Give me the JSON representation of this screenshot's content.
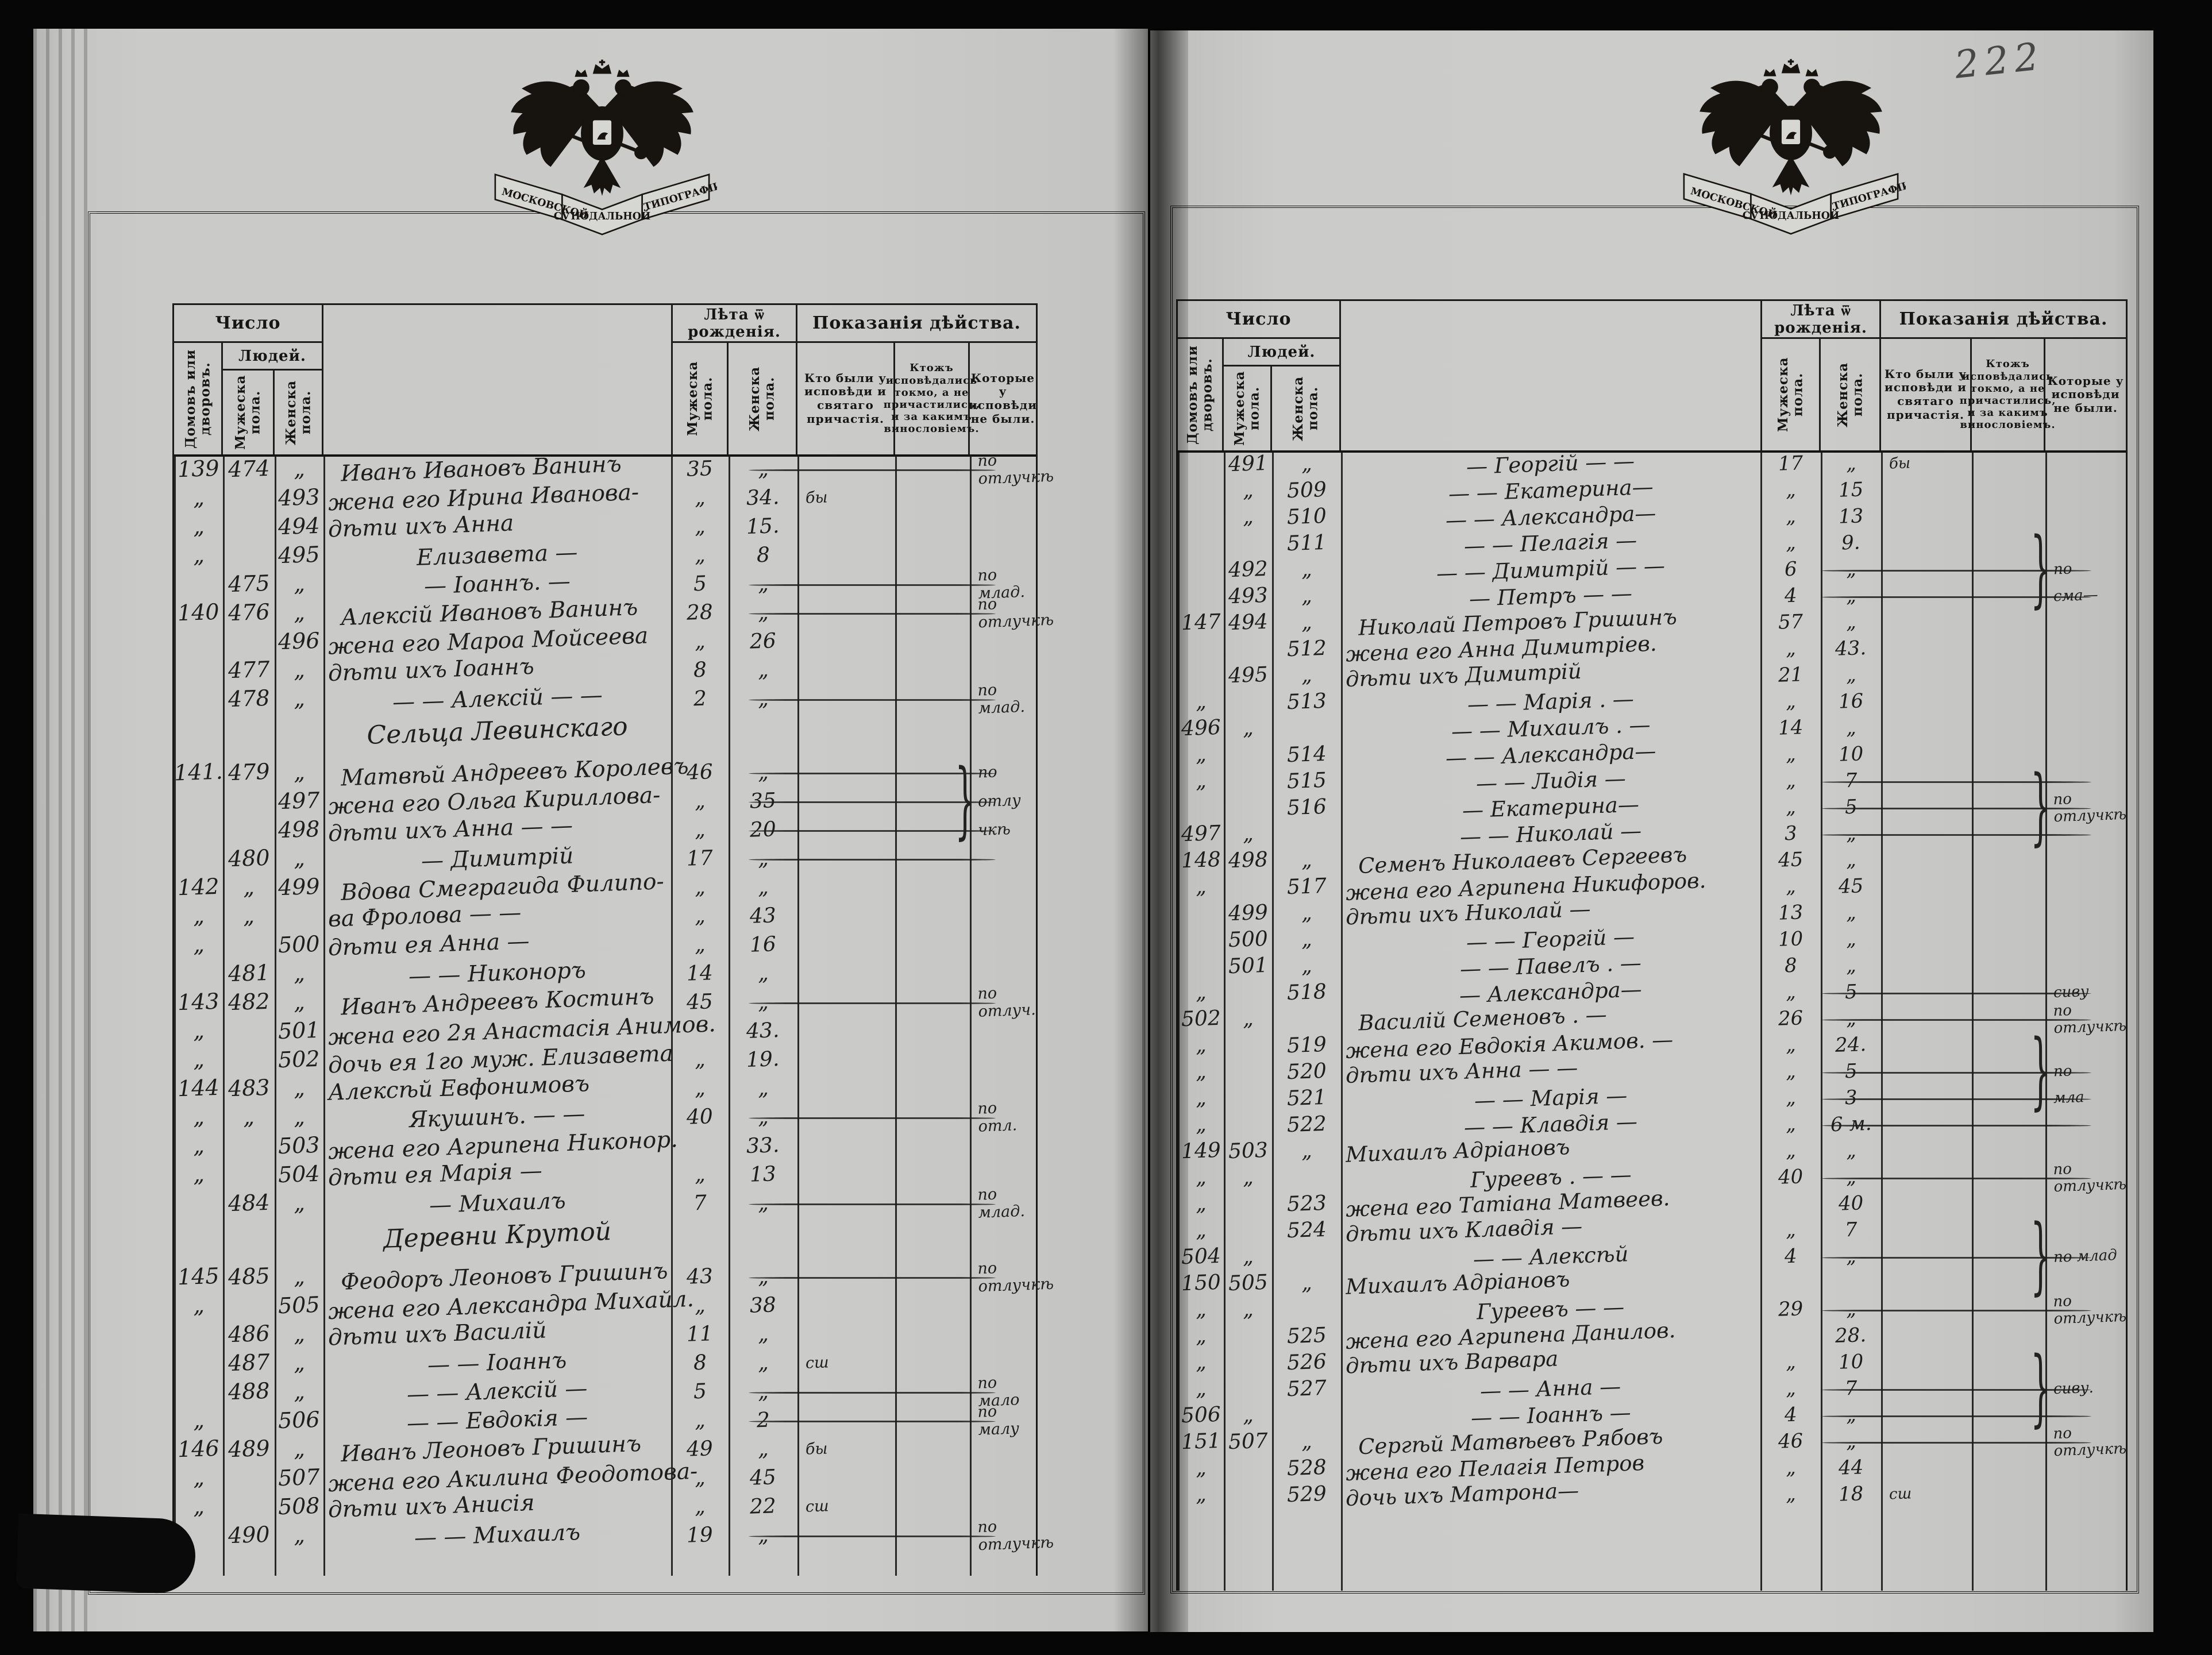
{
  "folio_number": "222",
  "emblem": {
    "ribbon_1": "МОСКОВСКОЙ",
    "ribbon_2": "СѴНОДАЛЬНОЙ",
    "ribbon_3": "ТИПОГРАФІИ."
  },
  "table_header": {
    "number": "Число",
    "houses": "Домовъ или дворовъ.",
    "people": "Людей.",
    "male_col": "Мужеска пола.",
    "female_col": "Женска пола.",
    "age": "Лѣта ѿ рожденія.",
    "testimony": "Показанія дѣйства.",
    "col_confessed": "Кто были у исповѣди и святаго причастія.",
    "col_confessed_only": "Ктожъ исповѣдались токмо, а не причастились, и за какимъ винословіемъ.",
    "col_absent": "Которые у исповѣди не были."
  },
  "left_page": {
    "rows": [
      {
        "h": "139",
        "m": "474",
        "f": "„",
        "n": "Иванъ Ивановъ Ванинъ",
        "am": "35",
        "af": "„",
        "n3": "по отлучкѣ",
        "rule": 1,
        "ind": 0
      },
      {
        "h": "„",
        "f": "493",
        "n": "жена его Ирина Иванова-",
        "am": "„",
        "af": "34.",
        "n1": "бы",
        "ind": 1
      },
      {
        "h": "„",
        "f": "494",
        "n": "дѣти ихъ Анна",
        "am": "„",
        "af": "15.",
        "ind": 1
      },
      {
        "h": "„",
        "f": "495",
        "n": "Елизавета —",
        "am": "„",
        "af": "8",
        "ind": 2
      },
      {
        "m": "475",
        "f": "„",
        "n": "— Іоаннъ. —",
        "am": "5",
        "af": "„",
        "n3": "по млад.",
        "rule": 1,
        "ind": 2
      },
      {
        "h": "140",
        "m": "476",
        "f": "„",
        "n": "Алексій Ивановъ Ванинъ",
        "am": "28",
        "af": "„",
        "n3": "по отлучкѣ",
        "rule": 1,
        "ind": 0
      },
      {
        "f": "496",
        "n": "жена его Мароа Мойсеева",
        "am": "„",
        "af": "26",
        "ind": 1
      },
      {
        "m": "477",
        "f": "„",
        "n": "дѣти ихъ Іоаннъ",
        "am": "8",
        "af": "„",
        "ind": 1
      },
      {
        "m": "478",
        "f": "„",
        "n": "— — Алексій — —",
        "am": "2",
        "af": "„",
        "n3": "по млад.",
        "rule": 1,
        "ind": 2
      },
      {
        "section": "Сельца Левинскаго"
      },
      {
        "h": "141.",
        "m": "479",
        "f": "„",
        "n": "Матвѣй Андреевъ Королевъ",
        "am": "46",
        "af": "„",
        "n3": "по",
        "rule": 1,
        "ind": 0
      },
      {
        "f": "497",
        "n": "жена его Ольга Кириллова-",
        "am": "„",
        "af": "35",
        "n3": "отлу",
        "rule": 1,
        "brace": 1,
        "ind": 1
      },
      {
        "f": "498",
        "n": "дѣти ихъ Анна — —",
        "am": "„",
        "af": "20",
        "n3": "чкѣ",
        "rule": 1,
        "ind": 1
      },
      {
        "m": "480",
        "f": "„",
        "n": "— Димитрій",
        "am": "17",
        "af": "„",
        "rule": 1,
        "ind": 2
      },
      {
        "h": "142",
        "m": "„",
        "f": "499",
        "n": "Вдова Смеграгида Филипо-",
        "am": "„",
        "af": "„",
        "ind": 0
      },
      {
        "h": "„",
        "m": "„",
        "n": "ва Фролова — —",
        "am": "„",
        "af": "43",
        "ind": 1
      },
      {
        "h": "„",
        "f": "500",
        "n": "дѣти ея Анна —",
        "am": "„",
        "af": "16",
        "ind": 1
      },
      {
        "m": "481",
        "f": "„",
        "n": "— — Никоноръ",
        "am": "14",
        "af": "„",
        "ind": 2
      },
      {
        "h": "143",
        "m": "482",
        "f": "„",
        "n": "Иванъ Андреевъ Костинъ",
        "am": "45",
        "af": "„",
        "n3": "по отлуч.",
        "rule": 1,
        "ind": 0
      },
      {
        "h": "„",
        "f": "501",
        "n": "жена его 2я Анастасія Анимов.",
        "af": "43.",
        "ind": 1
      },
      {
        "h": "„",
        "f": "502",
        "n": "дочь ея 1го муж. Елизавета",
        "am": "„",
        "af": "19.",
        "ind": 1
      },
      {
        "h": "144",
        "m": "483",
        "f": "„",
        "n": "Алексѣй Евфонимовъ",
        "am": "„",
        "af": "„",
        "ind": 1
      },
      {
        "h": "„",
        "m": "„",
        "f": "„",
        "n": "Якушинъ. — —",
        "am": "40",
        "af": "„",
        "n3": "по отл.",
        "rule": 1,
        "ind": 2
      },
      {
        "h": "„",
        "f": "503",
        "n": "жена его Агрипена Никонор.",
        "af": "33.",
        "ind": 1
      },
      {
        "h": "„",
        "f": "504",
        "n": "дѣти ея Марія —",
        "am": "„",
        "af": "13",
        "ind": 1
      },
      {
        "m": "484",
        "f": "„",
        "n": "— Михаилъ",
        "am": "7",
        "af": "„",
        "n3": "по млад.",
        "rule": 1,
        "ind": 2
      },
      {
        "section": "Деревни Крутой"
      },
      {
        "h": "145",
        "m": "485",
        "f": "„",
        "n": "Феодоръ Леоновъ Гришинъ",
        "am": "43",
        "af": "„",
        "n3": "по отлучкѣ",
        "rule": 1,
        "ind": 0
      },
      {
        "h": "„",
        "f": "505",
        "n": "жена его Александра Михайл.",
        "am": "„",
        "af": "38",
        "ind": 1
      },
      {
        "m": "486",
        "f": "„",
        "n": "дѣти ихъ Василій",
        "am": "11",
        "af": "„",
        "ind": 1
      },
      {
        "m": "487",
        "f": "„",
        "n": "— — Іоаннъ",
        "am": "8",
        "af": "„",
        "n1": "сш",
        "ind": 2
      },
      {
        "m": "488",
        "f": "„",
        "n": "— — Алексій —",
        "am": "5",
        "af": "„",
        "n3": "по мало",
        "rule": 1,
        "ind": 2
      },
      {
        "h": "„",
        "f": "506",
        "n": "— — Евдокія —",
        "am": "„",
        "af": "2",
        "n3": "по малу",
        "rule": 1,
        "ind": 2
      },
      {
        "h": "146",
        "m": "489",
        "f": "„",
        "n": "Иванъ Леоновъ Гришинъ",
        "am": "49",
        "af": "„",
        "n1": "бы",
        "ind": 0
      },
      {
        "h": "„",
        "f": "507",
        "n": "жена его Акилина Феодотова-",
        "am": "„",
        "af": "45",
        "ind": 1
      },
      {
        "h": "„",
        "f": "508",
        "n": "дѣти ихъ Анисія",
        "am": "„",
        "af": "22",
        "n1": "сш",
        "ind": 1
      },
      {
        "m": "490",
        "f": "„",
        "n": "— — Михаилъ",
        "am": "19",
        "af": "„",
        "n3": "по отлучкѣ",
        "rule": 1,
        "ind": 2
      }
    ]
  },
  "right_page": {
    "rows": [
      {
        "m": "491",
        "f": "„",
        "n": "— Георгій — —",
        "am": "17",
        "af": "„",
        "n1": "бы",
        "ind": 2
      },
      {
        "m": "„",
        "f": "509",
        "n": "— — Екатерина—",
        "am": "„",
        "af": "15",
        "ind": 2
      },
      {
        "m": "„",
        "f": "510",
        "n": "— — Александра—",
        "am": "„",
        "af": "13",
        "ind": 2
      },
      {
        "f": "511",
        "n": "— — Пелагія —",
        "am": "„",
        "af": "9.",
        "ind": 2
      },
      {
        "m": "492",
        "f": "„",
        "n": "— — Димитрій — —",
        "am": "6",
        "af": "„",
        "n3": "по",
        "rule": 1,
        "brace": 1,
        "ind": 2
      },
      {
        "m": "493",
        "f": "„",
        "n": "— Петръ — —",
        "am": "4",
        "af": "„",
        "n3": "сма—",
        "rule": 1,
        "ind": 2
      },
      {
        "h": "147",
        "m": "494",
        "f": "„",
        "n": "Николай Петровъ Гришинъ",
        "am": "57",
        "af": "„",
        "ind": 0
      },
      {
        "f": "512",
        "n": "жена его Анна Димитріев.",
        "am": "„",
        "af": "43.",
        "ind": 1
      },
      {
        "m": "495",
        "f": "„",
        "n": "дѣти ихъ Димитрій",
        "am": "21",
        "af": "„",
        "ind": 1
      },
      {
        "h": "„",
        "f": "513",
        "n": "— — Марія . —",
        "am": "„",
        "af": "16",
        "ind": 2
      },
      {
        "h": "496",
        "m": "„",
        "n": "— — Михаилъ . —",
        "am": "14",
        "af": "„",
        "ind": 2
      },
      {
        "h": "„",
        "f": "514",
        "n": "— — Александра—",
        "am": "„",
        "af": "10",
        "ind": 2
      },
      {
        "h": "„",
        "f": "515",
        "n": "— — Лидія —",
        "am": "„",
        "af": "7",
        "rule": 1,
        "ind": 2
      },
      {
        "f": "516",
        "n": "— Екатерина—",
        "am": "„",
        "af": "5",
        "n3": "по отлучкѣ",
        "rule": 1,
        "brace": 1,
        "ind": 2
      },
      {
        "h": "497",
        "m": "„",
        "n": "— — Николай —",
        "am": "3",
        "af": "„",
        "rule": 1,
        "ind": 2
      },
      {
        "h": "148",
        "m": "498",
        "f": "„",
        "n": "Семенъ Николаевъ Сергеевъ",
        "am": "45",
        "af": "„",
        "ind": 0
      },
      {
        "h": "„",
        "f": "517",
        "n": "жена его Агрипена Никифоров.",
        "am": "„",
        "af": "45",
        "ind": 1
      },
      {
        "m": "499",
        "f": "„",
        "n": "дѣти ихъ Николай —",
        "am": "13",
        "af": "„",
        "ind": 1
      },
      {
        "m": "500",
        "f": "„",
        "n": "— — Георгій —",
        "am": "10",
        "af": "„",
        "ind": 2
      },
      {
        "m": "501",
        "f": "„",
        "n": "— — Павелъ . —",
        "am": "8",
        "af": "„",
        "ind": 2
      },
      {
        "h": "„",
        "f": "518",
        "n": "— Александра—",
        "am": "„",
        "af": "5",
        "n3": "сиву",
        "rule": 1,
        "ind": 2
      },
      {
        "h": "502",
        "m": "„",
        "n": "Василій Семеновъ . —",
        "am": "26",
        "af": "„",
        "n3": "по отлучкѣ",
        "rule": 1,
        "ind": 0
      },
      {
        "h": "„",
        "f": "519",
        "n": "жена его Евдокія Акимов. —",
        "am": "„",
        "af": "24.",
        "ind": 1
      },
      {
        "h": "„",
        "f": "520",
        "n": "дѣти ихъ Анна — —",
        "am": "„",
        "af": "5",
        "n3": "по",
        "rule": 1,
        "brace": 1,
        "ind": 1
      },
      {
        "h": "„",
        "f": "521",
        "n": "— — Марія —",
        "am": "„",
        "af": "3",
        "n3": "мла",
        "rule": 1,
        "ind": 2
      },
      {
        "h": "„",
        "f": "522",
        "n": "— — Клавдія —",
        "am": "„",
        "af": "6 м.",
        "rule": 1,
        "ind": 2
      },
      {
        "h": "149",
        "m": "503",
        "f": "„",
        "n": "Михаилъ Адріановъ",
        "am": "„",
        "af": "„",
        "ind": 1
      },
      {
        "h": "„",
        "m": "„",
        "n": "Гуреевъ . — —",
        "am": "40",
        "af": "„",
        "n3": "по отлучкѣ",
        "rule": 1,
        "ind": 2
      },
      {
        "h": "„",
        "f": "523",
        "n": "жена его Татіана Матвеев.",
        "af": "40",
        "ind": 1
      },
      {
        "h": "„",
        "f": "524",
        "n": "дѣти ихъ Клавдія —",
        "am": "„",
        "af": "7",
        "ind": 1
      },
      {
        "h": "504",
        "m": "„",
        "n": "— — Алексѣй",
        "am": "4",
        "af": "„",
        "n3": "по млад",
        "rule": 1,
        "brace": 1,
        "ind": 2
      },
      {
        "h": "150",
        "m": "505",
        "f": "„",
        "n": "Михаилъ Адріановъ",
        "ind": 1
      },
      {
        "h": "„",
        "m": "„",
        "n": "Гуреевъ — —",
        "am": "29",
        "af": "„",
        "n3": "по отлучкѣ",
        "rule": 1,
        "ind": 2
      },
      {
        "h": "„",
        "f": "525",
        "n": "жена его Агрипена Данилов.",
        "af": "28.",
        "ind": 1
      },
      {
        "h": "„",
        "f": "526",
        "n": "дѣти ихъ Варвара",
        "am": "„",
        "af": "10",
        "ind": 1
      },
      {
        "h": "„",
        "f": "527",
        "n": "— — Анна —",
        "am": "„",
        "af": "7",
        "n3": "сиву.",
        "rule": 1,
        "brace": 1,
        "ind": 2
      },
      {
        "h": "506",
        "m": "„",
        "n": "— — Іоаннъ —",
        "am": "4",
        "af": "„",
        "rule": 1,
        "ind": 2
      },
      {
        "h": "151",
        "m": "507",
        "f": "„",
        "n": "Сергѣй Матвѣевъ Рябовъ",
        "am": "46",
        "af": "„",
        "n3": "по отлучкѣ",
        "rule": 1,
        "ind": 0
      },
      {
        "h": "„",
        "f": "528",
        "n": "жена его Пелагія Петров",
        "am": "„",
        "af": "44",
        "ind": 1
      },
      {
        "h": "„",
        "f": "529",
        "n": "дочь ихъ Матрона—",
        "am": "„",
        "af": "18",
        "n1": "сш",
        "ind": 1
      }
    ]
  }
}
